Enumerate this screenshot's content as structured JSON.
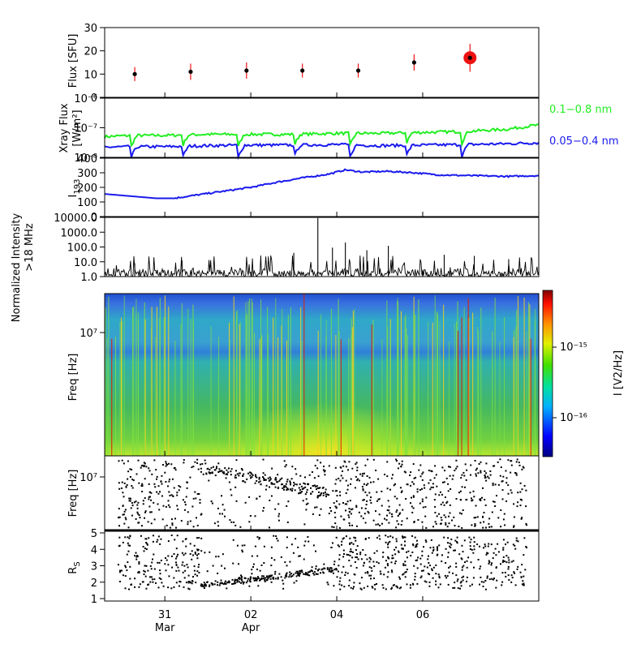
{
  "colors": {
    "green": "#22ee22",
    "blue": "#1a1aee",
    "red": "#ee1111",
    "black": "#000000"
  },
  "chart_data": [
    {
      "panel": "flux",
      "type": "scatter",
      "ylabel": "Flux [SFU]",
      "ylim": [
        0,
        30
      ],
      "yticks": [
        "0",
        "10",
        "20",
        "30"
      ],
      "points": [
        {
          "day": 30.65,
          "flux": 10,
          "err": 3
        },
        {
          "day": 31.3,
          "flux": 11,
          "err": 3.5
        },
        {
          "day": 31.95,
          "flux": 11.5,
          "err": 3.5
        },
        {
          "day": 32.6,
          "flux": 11.5,
          "err": 3
        },
        {
          "day": 33.25,
          "flux": 11.5,
          "err": 3
        },
        {
          "day": 33.9,
          "flux": 15,
          "err": 3.5
        },
        {
          "day": 34.55,
          "flux": 17,
          "err": 6,
          "highlight": true
        }
      ]
    },
    {
      "panel": "xray",
      "type": "line",
      "ylabel": "Xray Flux [W/m²]",
      "ylabel_lines": [
        "Xray Flux",
        "[W/m²]"
      ],
      "yscale": "log",
      "ylim": [
        1e-08,
        1e-06
      ],
      "yticks": [
        "10⁻⁸",
        "10⁻⁷",
        "10⁻⁶"
      ],
      "series": [
        {
          "name": "0.1–0.8 nm",
          "label": "0.1−0.8 nm",
          "color": "#22ee22",
          "x": [
            30.3,
            30.6,
            31.0,
            31.5,
            32.0,
            32.5,
            33.0,
            33.5,
            34.0,
            34.5,
            35.0,
            35.3
          ],
          "y": [
            5e-08,
            5.5e-08,
            5.5e-08,
            6e-08,
            6e-08,
            6e-08,
            6.5e-08,
            6.5e-08,
            7e-08,
            7.5e-08,
            9e-08,
            1.2e-07
          ]
        },
        {
          "name": "0.05–0.4 nm",
          "label": "0.05−0.4 nm",
          "color": "#1a1aee",
          "x": [
            30.3,
            30.6,
            31.0,
            31.5,
            32.0,
            32.5,
            33.0,
            33.5,
            34.0,
            34.5,
            35.0,
            35.3
          ],
          "y": [
            2.2e-08,
            2.3e-08,
            2.3e-08,
            2.5e-08,
            2.6e-08,
            2.6e-08,
            2.7e-08,
            2.5e-08,
            2.6e-08,
            2.7e-08,
            2.9e-08,
            3.1e-08
          ]
        }
      ]
    },
    {
      "panel": "i193",
      "type": "line",
      "ylabel": "I",
      "ylabel_sub": "193",
      "ylim": [
        0,
        400
      ],
      "yticks": [
        "0",
        "100",
        "200",
        "300",
        "400"
      ],
      "series": [
        {
          "color": "#1a1aee",
          "x": [
            30.3,
            30.6,
            30.9,
            31.1,
            31.4,
            31.7,
            32.0,
            32.3,
            32.6,
            32.9,
            33.1,
            33.3,
            33.6,
            33.9,
            34.2,
            34.6,
            35.0,
            35.3
          ],
          "y": [
            155,
            140,
            125,
            125,
            150,
            175,
            200,
            235,
            265,
            290,
            320,
            305,
            310,
            300,
            285,
            280,
            275,
            280
          ]
        }
      ]
    },
    {
      "panel": "radio",
      "type": "line",
      "ylabel": "Normalized Intensity >18 MHz",
      "ylabel_lines": [
        "Normalized Intensity",
        ">18 MHz"
      ],
      "yscale": "log",
      "ylim": [
        1,
        10000
      ],
      "yticks": [
        "1.0",
        "10.0",
        "100.0",
        "1000.0",
        "10000.0"
      ],
      "spikes": [
        {
          "day": 30.65,
          "v": 8
        },
        {
          "day": 31.2,
          "v": 12
        },
        {
          "day": 32.5,
          "v": 40
        },
        {
          "day": 32.78,
          "v": 9000
        },
        {
          "day": 33.1,
          "v": 200
        },
        {
          "day": 33.6,
          "v": 120
        },
        {
          "day": 34.25,
          "v": 30
        },
        {
          "day": 35.0,
          "v": 15
        },
        {
          "day": 32.95,
          "v": 90
        },
        {
          "day": 33.35,
          "v": 60
        },
        {
          "day": 34.6,
          "v": 25
        }
      ]
    },
    {
      "panel": "spectrogram",
      "type": "heatmap",
      "ylabel": "Freq [Hz]",
      "ytick": "10⁷",
      "colorbar_label": "I [V2/Hz]",
      "colorbar_ticks": [
        "10⁻¹⁵",
        "10⁻¹⁶"
      ]
    },
    {
      "panel": "freq-dots",
      "type": "scatter",
      "ylabel": "Freq [Hz]",
      "ytick": "10⁷"
    },
    {
      "panel": "rs-dots",
      "type": "scatter",
      "ylabel": "R",
      "ylabel_sub": "S",
      "ylim": [
        1,
        5
      ],
      "yticks": [
        "1",
        "2",
        "3",
        "4",
        "5"
      ]
    }
  ],
  "xaxis": {
    "xlim": [
      30.3,
      35.35
    ],
    "ticks": [
      {
        "day": 31,
        "label": "31",
        "sub": "Mar"
      },
      {
        "day": 32,
        "label": "02",
        "sub": "Apr"
      },
      {
        "day": 33,
        "label": "04",
        "sub": ""
      },
      {
        "day": 34,
        "label": "06",
        "sub": ""
      }
    ]
  }
}
